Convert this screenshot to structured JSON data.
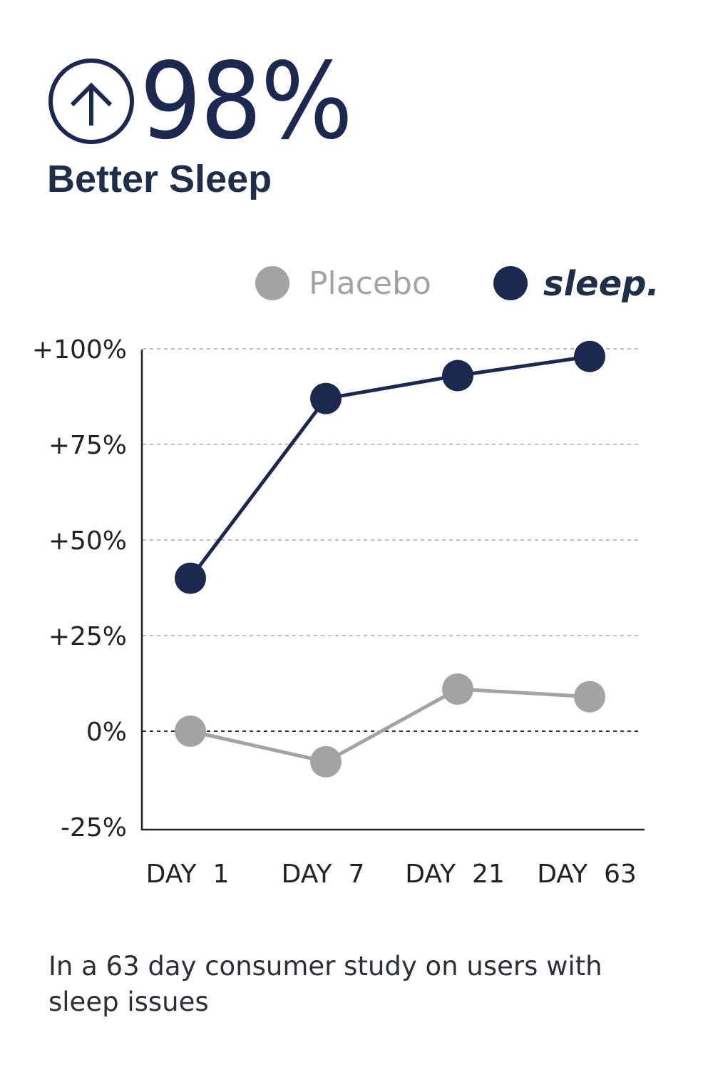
{
  "headline": {
    "value": "98%",
    "label": "Better Sleep",
    "icon": "arrow-up-circle-icon"
  },
  "footnote": "In a 63 day consumer study on users with sleep issues",
  "colors": {
    "sleep": "#1b2850",
    "placebo": "#a3a3a3",
    "text": "#1f2f4a"
  },
  "chart_data": {
    "type": "line",
    "categories": [
      "DAY  1",
      "DAY  7",
      "DAY  21",
      "DAY  63"
    ],
    "series": [
      {
        "name": "Placebo",
        "values": [
          0,
          -8,
          11,
          9
        ],
        "color": "#a3a3a3"
      },
      {
        "name": "sleep.",
        "values": [
          40,
          87,
          93,
          98
        ],
        "color": "#1b2850"
      }
    ],
    "yticks": [
      100,
      75,
      50,
      25,
      0,
      -25
    ],
    "ytick_labels": [
      "+100%",
      "+75%",
      "+50%",
      "+25%",
      "0%",
      "-25%"
    ],
    "ylim": [
      -25,
      100
    ],
    "grid": "horizontal dashed",
    "legend": "top-right"
  }
}
